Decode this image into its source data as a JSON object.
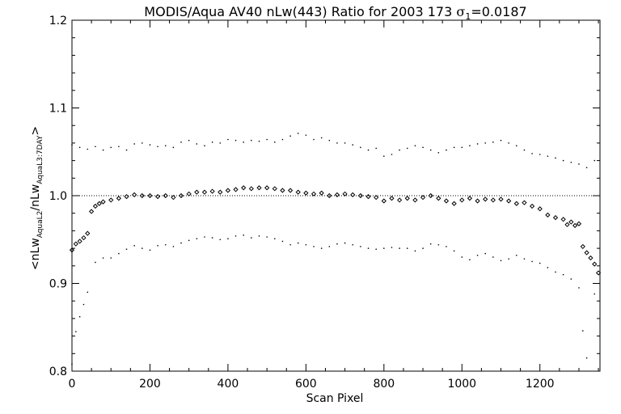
{
  "chart_data": {
    "type": "scatter",
    "title": {
      "text": "MODIS/Aqua AV40 nLw(443) Ratio for 2003 173",
      "sigma_symbol": "σ",
      "sigma_sub": "1",
      "sigma_value": "=0.0187"
    },
    "xlabel": "Scan Pixel",
    "ylabel": {
      "lt": "<",
      "a": "nLw",
      "a_sub": "AquaL2",
      "slash": "/",
      "b": "nLw",
      "b_sub": "AquaL3:7DAY",
      "gt": ">"
    },
    "xlim": [
      0,
      1354
    ],
    "ylim": [
      0.8,
      1.2
    ],
    "xticks": [
      0,
      200,
      400,
      600,
      800,
      1000,
      1200
    ],
    "xtick_labels": [
      "0",
      "200",
      "400",
      "600",
      "800",
      "1000",
      "1200"
    ],
    "yticks": [
      0.8,
      0.9,
      1.0,
      1.1,
      1.2
    ],
    "ytick_labels": [
      "0.8",
      "0.9",
      "1.0",
      "1.1",
      "1.2"
    ],
    "reference_line": 1.0,
    "grid": false,
    "legend": "none",
    "colors": {
      "ink": "#000000",
      "background": "#ffffff"
    },
    "series": [
      {
        "role": "mean-ratio",
        "marker": "diamond",
        "x": [
          0,
          10,
          20,
          30,
          40,
          50,
          60,
          70,
          80,
          100,
          120,
          140,
          160,
          180,
          200,
          220,
          240,
          260,
          280,
          300,
          320,
          340,
          360,
          380,
          400,
          420,
          440,
          460,
          480,
          500,
          520,
          540,
          560,
          580,
          600,
          620,
          640,
          660,
          680,
          700,
          720,
          740,
          760,
          780,
          800,
          820,
          840,
          860,
          880,
          900,
          920,
          940,
          960,
          980,
          1000,
          1020,
          1040,
          1060,
          1080,
          1100,
          1120,
          1140,
          1160,
          1180,
          1200,
          1220,
          1240,
          1260,
          1270,
          1280,
          1290,
          1300,
          1310,
          1320,
          1330,
          1340,
          1350
        ],
        "y": [
          0.938,
          0.945,
          0.948,
          0.952,
          0.957,
          0.982,
          0.988,
          0.991,
          0.993,
          0.995,
          0.997,
          0.999,
          1.001,
          1.0,
          1.0,
          0.999,
          1.0,
          0.998,
          1.0,
          1.002,
          1.004,
          1.004,
          1.005,
          1.004,
          1.006,
          1.007,
          1.009,
          1.008,
          1.009,
          1.009,
          1.008,
          1.006,
          1.006,
          1.004,
          1.003,
          1.002,
          1.003,
          1.0,
          1.001,
          1.002,
          1.001,
          1.0,
          0.999,
          0.998,
          0.994,
          0.997,
          0.995,
          0.997,
          0.995,
          0.998,
          1.0,
          0.997,
          0.994,
          0.991,
          0.995,
          0.997,
          0.994,
          0.996,
          0.995,
          0.996,
          0.994,
          0.991,
          0.992,
          0.988,
          0.985,
          0.978,
          0.975,
          0.973,
          0.967,
          0.97,
          0.966,
          0.968,
          0.942,
          0.935,
          0.929,
          0.922,
          0.912
        ]
      },
      {
        "role": "upper-bound",
        "marker": "dot",
        "x": [
          0,
          20,
          40,
          60,
          80,
          100,
          120,
          140,
          160,
          180,
          200,
          220,
          240,
          260,
          280,
          300,
          320,
          340,
          360,
          380,
          400,
          420,
          440,
          460,
          480,
          500,
          520,
          540,
          560,
          580,
          600,
          620,
          640,
          660,
          680,
          700,
          720,
          740,
          760,
          780,
          800,
          820,
          840,
          860,
          880,
          900,
          920,
          940,
          960,
          980,
          1000,
          1020,
          1040,
          1060,
          1080,
          1100,
          1120,
          1140,
          1160,
          1180,
          1200,
          1220,
          1240,
          1260,
          1280,
          1300,
          1320,
          1340
        ],
        "y": [
          1.058,
          1.055,
          1.053,
          1.056,
          1.052,
          1.055,
          1.056,
          1.052,
          1.059,
          1.06,
          1.058,
          1.056,
          1.057,
          1.055,
          1.061,
          1.063,
          1.059,
          1.057,
          1.061,
          1.06,
          1.064,
          1.063,
          1.061,
          1.063,
          1.062,
          1.064,
          1.061,
          1.064,
          1.068,
          1.071,
          1.069,
          1.064,
          1.066,
          1.063,
          1.06,
          1.06,
          1.058,
          1.055,
          1.052,
          1.054,
          1.045,
          1.047,
          1.052,
          1.054,
          1.057,
          1.055,
          1.052,
          1.049,
          1.052,
          1.055,
          1.055,
          1.057,
          1.059,
          1.06,
          1.061,
          1.063,
          1.06,
          1.057,
          1.052,
          1.048,
          1.047,
          1.045,
          1.043,
          1.04,
          1.038,
          1.036,
          1.032,
          1.04
        ]
      },
      {
        "role": "lower-bound",
        "marker": "dot",
        "x": [
          0,
          10,
          20,
          30,
          40,
          60,
          80,
          100,
          120,
          140,
          160,
          180,
          200,
          220,
          240,
          260,
          280,
          300,
          320,
          340,
          360,
          380,
          400,
          420,
          440,
          460,
          480,
          500,
          520,
          540,
          560,
          580,
          600,
          620,
          640,
          660,
          680,
          700,
          720,
          740,
          760,
          780,
          800,
          820,
          840,
          860,
          880,
          900,
          920,
          940,
          960,
          980,
          1000,
          1020,
          1040,
          1060,
          1080,
          1100,
          1120,
          1140,
          1160,
          1180,
          1200,
          1220,
          1240,
          1260,
          1280,
          1300,
          1310,
          1320,
          1340
        ],
        "y": [
          0.808,
          0.845,
          0.862,
          0.876,
          0.89,
          0.924,
          0.929,
          0.929,
          0.934,
          0.939,
          0.943,
          0.94,
          0.938,
          0.943,
          0.944,
          0.942,
          0.946,
          0.949,
          0.951,
          0.953,
          0.952,
          0.95,
          0.951,
          0.954,
          0.955,
          0.952,
          0.954,
          0.953,
          0.951,
          0.948,
          0.944,
          0.946,
          0.944,
          0.942,
          0.94,
          0.942,
          0.945,
          0.946,
          0.944,
          0.942,
          0.94,
          0.939,
          0.94,
          0.941,
          0.94,
          0.94,
          0.937,
          0.94,
          0.945,
          0.944,
          0.942,
          0.937,
          0.93,
          0.927,
          0.932,
          0.934,
          0.93,
          0.926,
          0.928,
          0.932,
          0.928,
          0.925,
          0.923,
          0.918,
          0.913,
          0.91,
          0.905,
          0.895,
          0.846,
          0.815,
          0.888
        ]
      }
    ]
  }
}
